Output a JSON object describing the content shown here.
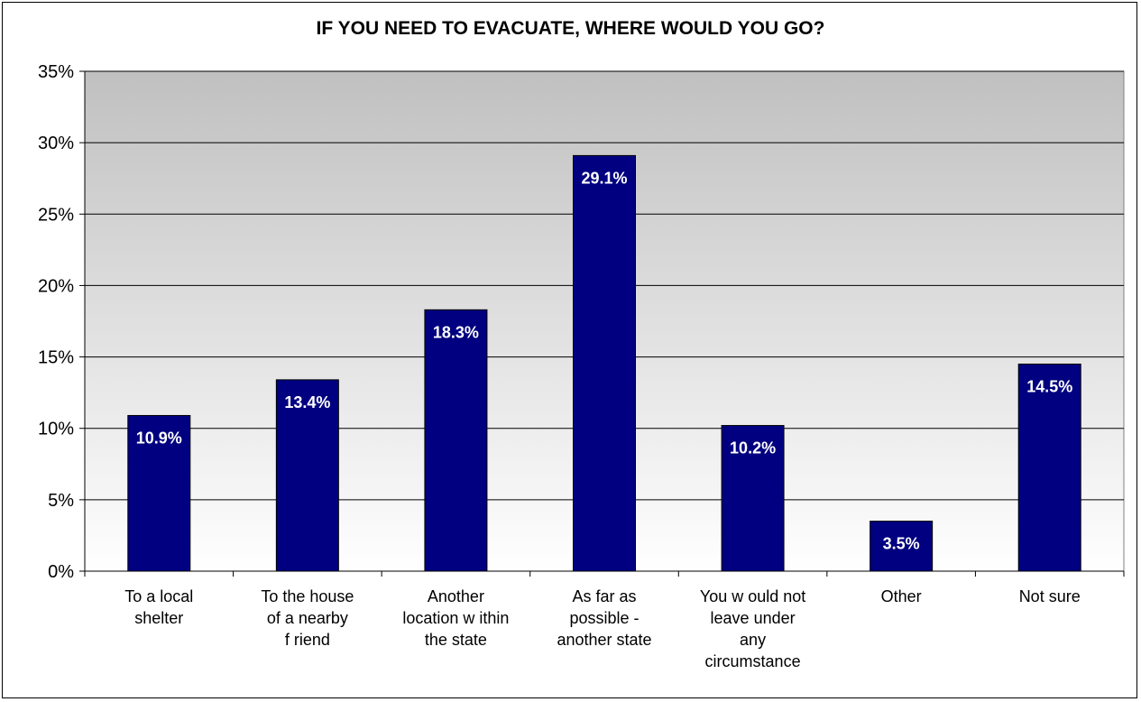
{
  "chart_data": {
    "type": "bar",
    "title": "IF YOU NEED TO EVACUATE, WHERE WOULD YOU GO?",
    "xlabel": "",
    "ylabel": "",
    "categories": [
      [
        "To a local",
        "shelter"
      ],
      [
        "To the house",
        "of a nearby",
        "f riend"
      ],
      [
        "Another",
        "location w ithin",
        "the state"
      ],
      [
        "As far as",
        "possible -",
        "another state"
      ],
      [
        "You w ould not",
        "leave under",
        "any",
        "circumstance"
      ],
      [
        "Other"
      ],
      [
        "Not sure"
      ]
    ],
    "values": [
      10.9,
      13.4,
      18.3,
      29.1,
      10.2,
      3.5,
      14.5
    ],
    "data_labels": [
      "10.9%",
      "13.4%",
      "18.3%",
      "29.1%",
      "10.2%",
      "3.5%",
      "14.5%"
    ],
    "ylim": [
      0,
      35
    ],
    "y_ticks": [
      {
        "value": 0,
        "label": "0%"
      },
      {
        "value": 5,
        "label": "5%"
      },
      {
        "value": 10,
        "label": "10%"
      },
      {
        "value": 15,
        "label": "15%"
      },
      {
        "value": 20,
        "label": "20%"
      },
      {
        "value": 25,
        "label": "25%"
      },
      {
        "value": 30,
        "label": "30%"
      },
      {
        "value": 35,
        "label": "35%"
      }
    ],
    "grid": true,
    "legend": "none",
    "colors": {
      "bar": "#000080",
      "plot_top": "#c0c0c0",
      "plot_bottom": "#ffffff",
      "gridline": "#000000",
      "data_label": "#ffffff"
    }
  }
}
